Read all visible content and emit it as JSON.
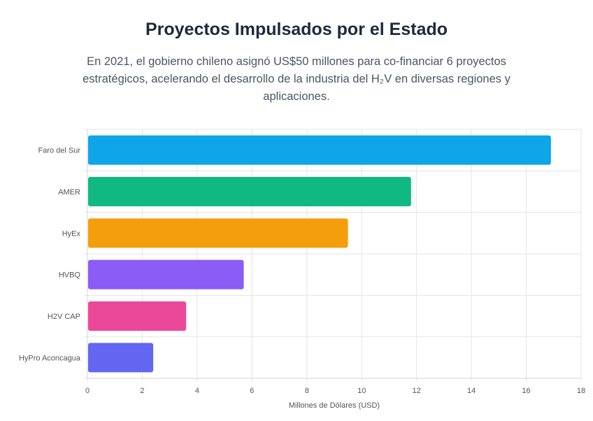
{
  "header": {
    "title": "Proyectos Impulsados por el Estado",
    "subtitle": "En 2021, el gobierno chileno asignó US$50 millones para co-financiar 6 proyectos estratégicos, acelerando el desarrollo de la industria del H₂V en diversas regiones y aplicaciones."
  },
  "chart_data": {
    "type": "bar",
    "orientation": "horizontal",
    "categories": [
      "Faro del Sur",
      "AMER",
      "HyEx",
      "HVBQ",
      "H2V CAP",
      "HyPro Aconcagua"
    ],
    "values": [
      16.9,
      11.8,
      9.5,
      5.7,
      3.6,
      2.4
    ],
    "colors": [
      "#0ea5e9",
      "#10b981",
      "#f59e0b",
      "#8b5cf6",
      "#ec4899",
      "#6366f1"
    ],
    "xlabel": "Millones de Dólares (USD)",
    "ylabel": "",
    "xlim": [
      0,
      18
    ],
    "xticks": [
      0,
      2,
      4,
      6,
      8,
      10,
      12,
      14,
      16,
      18
    ],
    "grid": true
  }
}
